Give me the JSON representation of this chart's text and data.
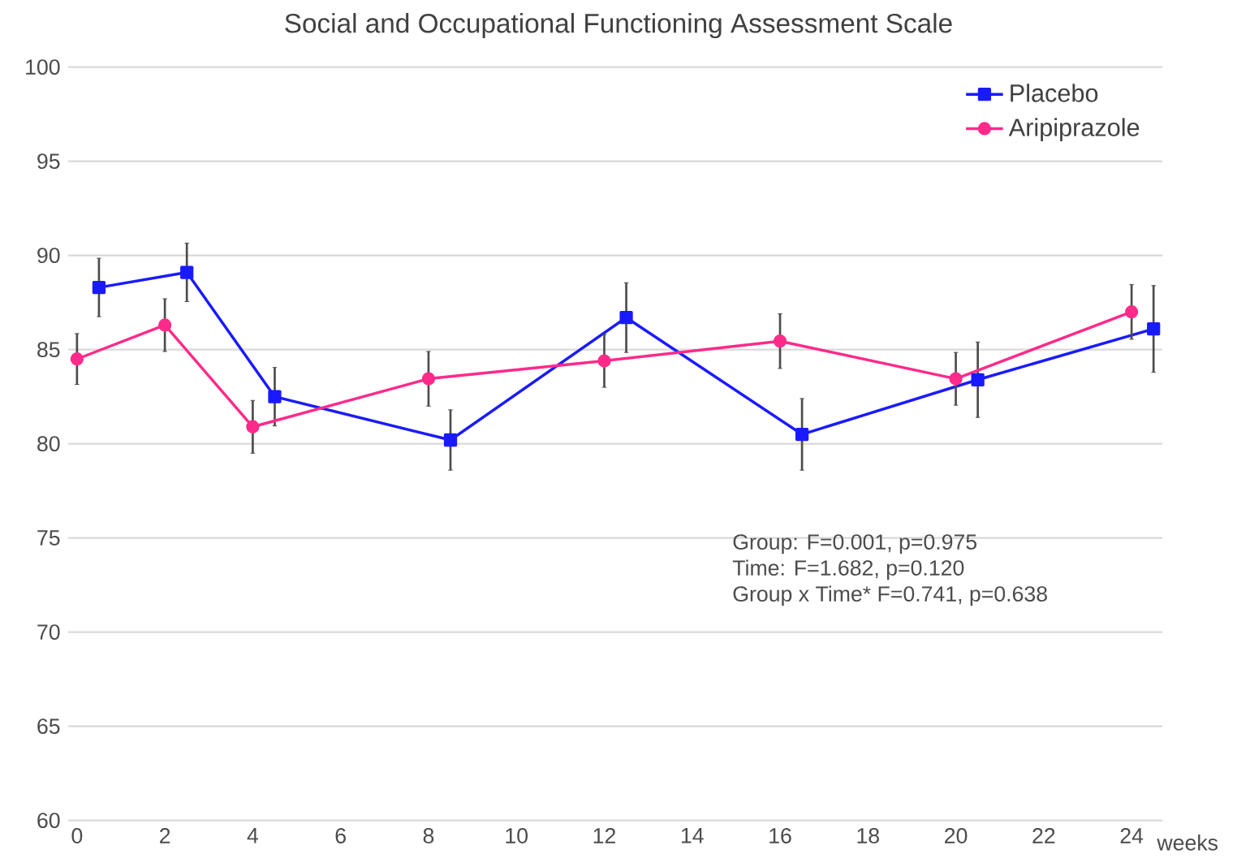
{
  "chart_data": {
    "type": "line",
    "title": "Social and Occupational Functioning Assessment Scale",
    "xlabel": "weeks",
    "xlim": [
      -0.2,
      24.7
    ],
    "xticks": [
      0,
      2,
      4,
      6,
      8,
      10,
      12,
      14,
      16,
      18,
      20,
      22,
      24
    ],
    "ylim": [
      60,
      100
    ],
    "yticks": [
      60,
      65,
      70,
      75,
      80,
      85,
      90,
      95,
      100
    ],
    "grid": "y",
    "legend": "top right",
    "series": [
      {
        "name": "Placebo",
        "color": "#1a1aff",
        "marker": "square",
        "x": [
          0.5,
          2.5,
          4.5,
          8.5,
          12.5,
          16.5,
          20.5,
          24.5
        ],
        "values": [
          88.3,
          89.1,
          82.5,
          80.2,
          86.7,
          80.5,
          83.4,
          86.1
        ],
        "errors": [
          1.55,
          1.55,
          1.55,
          1.6,
          1.85,
          1.9,
          2.0,
          2.3
        ]
      },
      {
        "name": "Aripiprazole",
        "color": "#ff2a8a",
        "marker": "circle",
        "x": [
          0,
          2,
          4,
          8,
          12,
          16,
          20,
          24
        ],
        "values": [
          84.5,
          86.3,
          80.9,
          83.45,
          84.4,
          85.45,
          83.45,
          87.0
        ],
        "errors": [
          1.35,
          1.4,
          1.4,
          1.45,
          1.4,
          1.45,
          1.4,
          1.45
        ]
      }
    ],
    "annotations": [
      "Group: F=0.001, p=0.975",
      "Time: F=1.682, p=0.120",
      "Group x Time* F=0.741, p=0.638"
    ]
  }
}
